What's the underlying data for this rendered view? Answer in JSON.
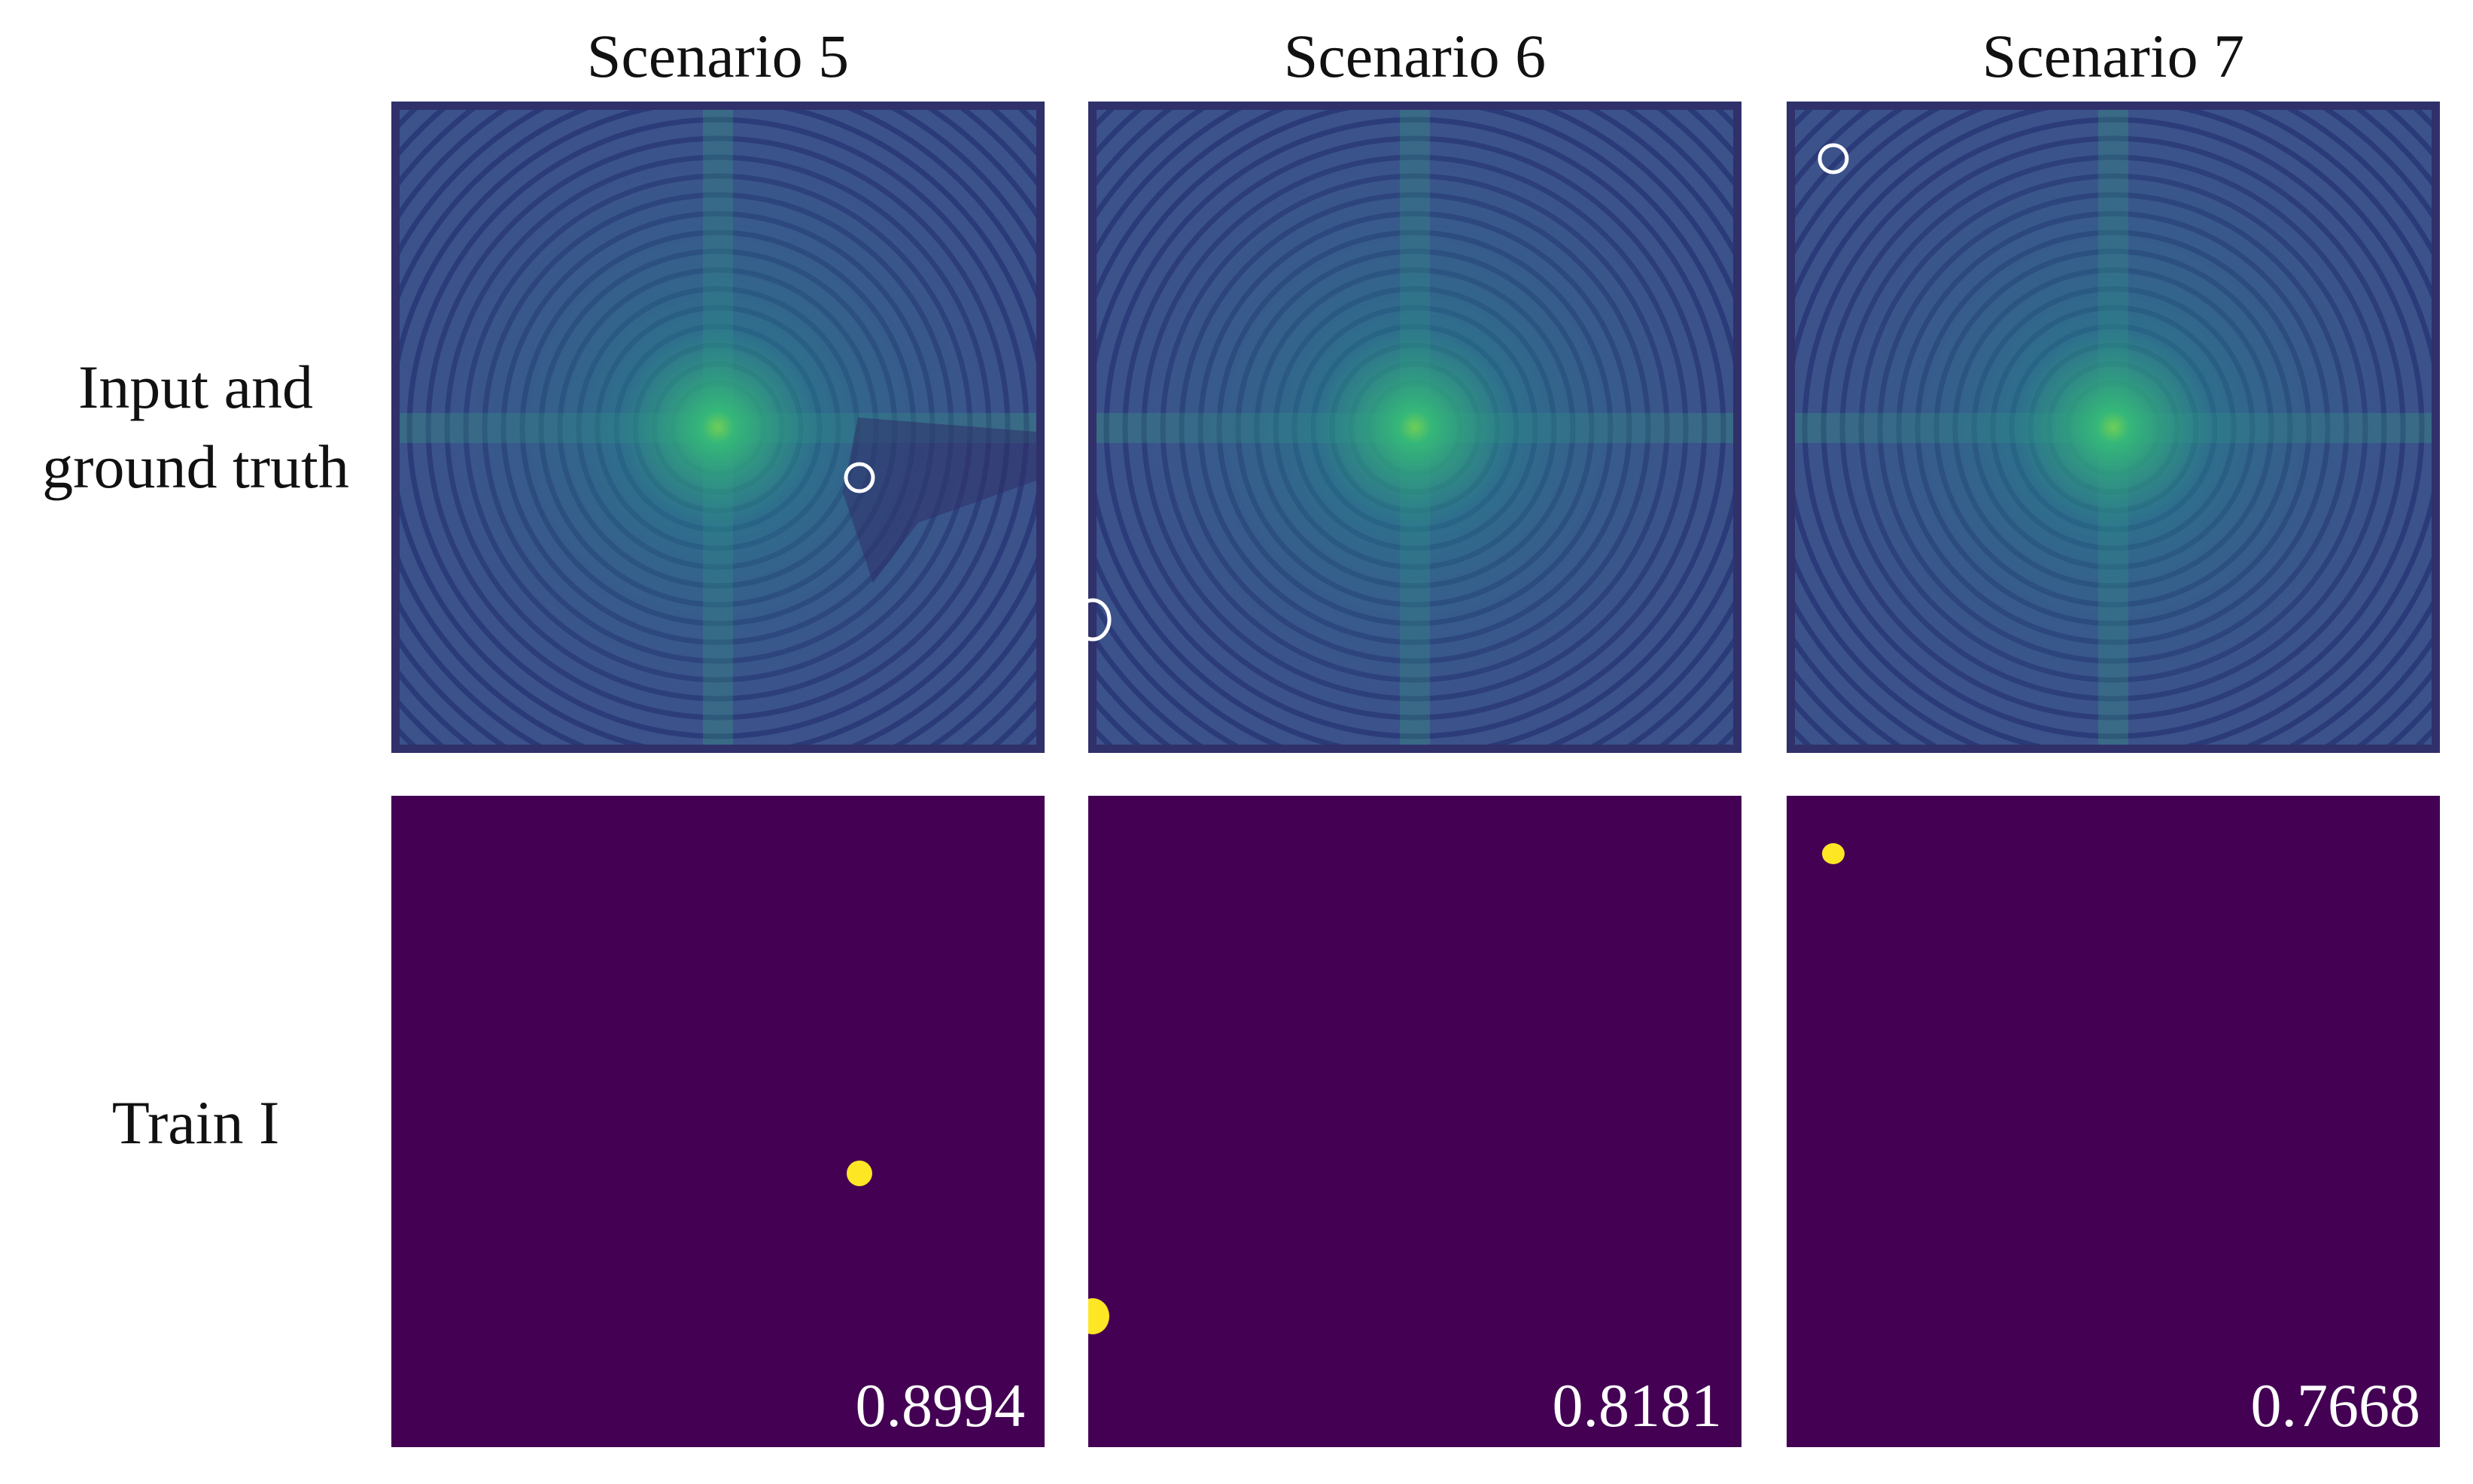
{
  "columns": [
    "Scenario 5",
    "Scenario 6",
    "Scenario 7"
  ],
  "rows": {
    "input_label_line1": "Input and",
    "input_label_line2": "ground truth",
    "train_label": "Train I"
  },
  "scores": [
    "0.8994",
    "0.8181",
    "0.7668"
  ],
  "colors": {
    "field_background": "#3b528b",
    "field_bright": "#35b779",
    "field_dark": "#30306a",
    "mask_background": "#440154",
    "mask_blob": "#fde725",
    "ground_truth_circle": "#ffffff"
  }
}
